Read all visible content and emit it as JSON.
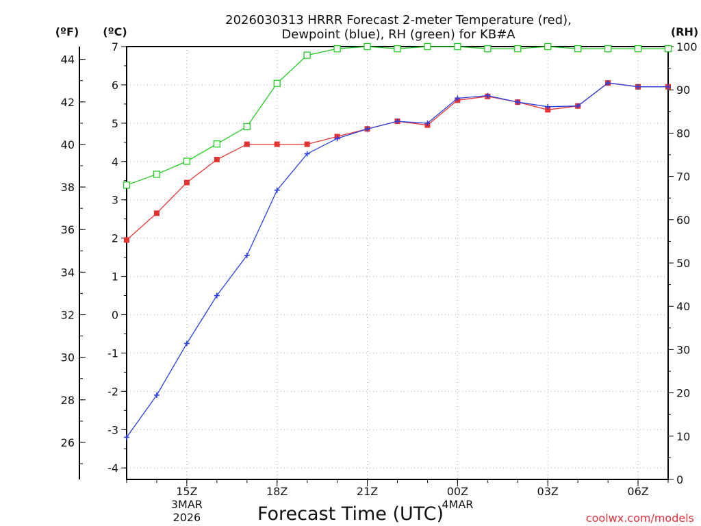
{
  "chart_data": {
    "type": "line",
    "title_line1": "2026030313 HRRR Forecast 2-meter Temperature (red),",
    "title_line2": "Dewpoint (blue), RH (green) for KB#A",
    "xlabel": "Forecast Time (UTC)",
    "unit_f": "(ºF)",
    "unit_c": "(ºC)",
    "unit_rh": "(RH)",
    "credit": "coolwx.com/models",
    "x": [
      0,
      1,
      2,
      3,
      4,
      5,
      6,
      7,
      8,
      9,
      10,
      11,
      12,
      13,
      14,
      15,
      16,
      17,
      18
    ],
    "xlim": [
      0,
      18
    ],
    "x_ticks": [
      {
        "x": 2,
        "label": "15Z",
        "sub1": "3MAR",
        "sub2": "2026"
      },
      {
        "x": 5,
        "label": "18Z",
        "sub1": "",
        "sub2": ""
      },
      {
        "x": 8,
        "label": "21Z",
        "sub1": "",
        "sub2": ""
      },
      {
        "x": 11,
        "label": "00Z",
        "sub1": "4MAR",
        "sub2": ""
      },
      {
        "x": 14,
        "label": "03Z",
        "sub1": "",
        "sub2": ""
      },
      {
        "x": 17,
        "label": "06Z",
        "sub1": "",
        "sub2": ""
      }
    ],
    "ylim_c": [
      -4.3,
      7
    ],
    "c_ticks": [
      "-4",
      "-3",
      "-2",
      "-1",
      "0",
      "1",
      "2",
      "3",
      "4",
      "5",
      "6",
      "7"
    ],
    "f_ticks": [
      "26",
      "28",
      "30",
      "32",
      "34",
      "36",
      "38",
      "40",
      "42",
      "44"
    ],
    "rh_ticks": [
      "0",
      "10",
      "20",
      "30",
      "40",
      "50",
      "60",
      "70",
      "80",
      "90",
      "100"
    ],
    "series": [
      {
        "name": "Temperature",
        "color": "#e83232",
        "values": [
          1.95,
          2.65,
          3.45,
          4.05,
          4.45,
          4.45,
          4.45,
          4.65,
          4.85,
          5.05,
          4.95,
          5.6,
          5.7,
          5.55,
          5.35,
          5.45,
          6.05,
          5.95,
          5.95
        ]
      },
      {
        "name": "Dewpoint",
        "color": "#2840e0",
        "values": [
          -3.2,
          -2.1,
          -0.75,
          0.5,
          1.55,
          3.25,
          4.2,
          4.6,
          4.85,
          5.05,
          5.0,
          5.65,
          5.72,
          5.55,
          5.43,
          5.45,
          6.05,
          5.95,
          5.95
        ]
      },
      {
        "name": "RH",
        "color": "#22cc22",
        "values": [
          68,
          70.5,
          73.5,
          77.5,
          81.5,
          91.5,
          98,
          99.5,
          100,
          99.5,
          100,
          100,
          99.5,
          99.5,
          100,
          99.5,
          99.5,
          99.5,
          99.5
        ]
      }
    ]
  }
}
